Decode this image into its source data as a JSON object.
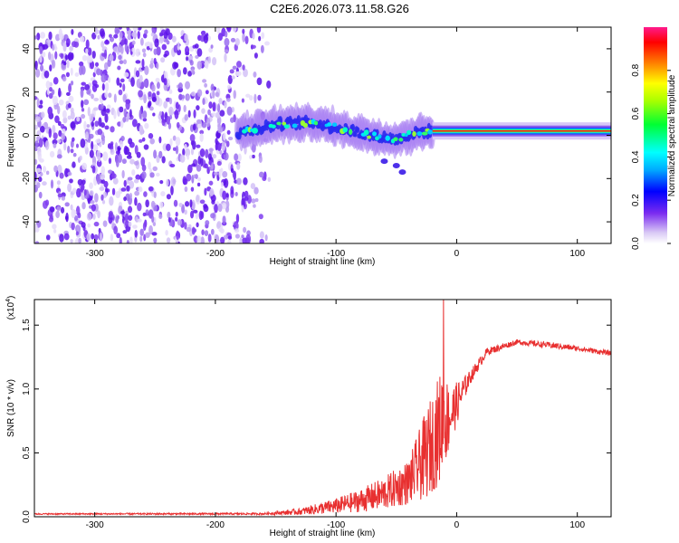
{
  "figure": {
    "title": "C2E6.2026.073.11.58.G26"
  },
  "chart_data": [
    {
      "type": "heatmap",
      "name": "spectrogram",
      "xlabel": "Height of straight line (km)",
      "ylabel": "Frequency (Hz)",
      "xlim": [
        -350,
        128
      ],
      "ylim": [
        -50,
        50
      ],
      "xticks": [
        -300,
        -200,
        -100,
        0,
        100
      ],
      "xtick_labels": [
        "-300",
        "-200",
        "-100",
        "0",
        "100"
      ],
      "yticks": [
        -40,
        -20,
        0,
        20,
        40
      ],
      "ytick_labels": [
        "-40",
        "-20",
        "0",
        "20",
        "40"
      ],
      "colorbar": {
        "label": "Normalized spectral amplitude",
        "range": [
          0,
          1
        ],
        "ticks": [
          0.0,
          0.2,
          0.4,
          0.6,
          0.8
        ],
        "tick_labels": [
          "0.0",
          "0.2",
          "0.4",
          "0.6",
          "0.8"
        ]
      },
      "regions": {
        "noise_end_km": -155,
        "signal_start_km": -182,
        "tone_start_km": -20,
        "tone_freq_hz": 2,
        "trace_points": [
          {
            "x": -182,
            "f": 1
          },
          {
            "x": -150,
            "f": 5
          },
          {
            "x": -120,
            "f": 6
          },
          {
            "x": -95,
            "f": 3
          },
          {
            "x": -70,
            "f": 0
          },
          {
            "x": -50,
            "f": -2
          },
          {
            "x": -35,
            "f": 1
          },
          {
            "x": -20,
            "f": 2
          },
          {
            "x": 128,
            "f": 2
          }
        ],
        "side_trace": [
          {
            "x": -60,
            "f": -12
          },
          {
            "x": -50,
            "f": -14
          },
          {
            "x": -45,
            "f": -17
          }
        ]
      }
    },
    {
      "type": "line",
      "name": "snr",
      "xlabel": "Height of straight line (km)",
      "ylabel": "SNR (10 * v/v)",
      "exponent_label": "(x10",
      "exponent": "4",
      "exponent_close": ")",
      "color": "#e83030",
      "xlim": [
        -350,
        128
      ],
      "ylim": [
        0,
        1.7
      ],
      "xticks": [
        -300,
        -200,
        -100,
        0,
        100
      ],
      "xtick_labels": [
        "-300",
        "-200",
        "-100",
        "0",
        "100"
      ],
      "yticks": [
        0.0,
        0.5,
        1.0,
        1.5
      ],
      "ytick_labels": [
        "0.0",
        "0.5",
        "1.0",
        "1.5"
      ],
      "envelope": [
        {
          "x": -350,
          "base": 0.02,
          "amp": 0.01
        },
        {
          "x": -160,
          "base": 0.02,
          "amp": 0.015
        },
        {
          "x": -130,
          "base": 0.03,
          "amp": 0.05
        },
        {
          "x": -100,
          "base": 0.06,
          "amp": 0.12
        },
        {
          "x": -80,
          "base": 0.09,
          "amp": 0.18
        },
        {
          "x": -60,
          "base": 0.13,
          "amp": 0.26
        },
        {
          "x": -40,
          "base": 0.2,
          "amp": 0.35
        },
        {
          "x": -25,
          "base": 0.35,
          "amp": 0.7
        },
        {
          "x": -12,
          "base": 0.55,
          "amp": 0.9
        },
        {
          "x": -5,
          "base": 0.7,
          "amp": 0.45
        },
        {
          "x": 10,
          "base": 1.05,
          "amp": 0.12
        },
        {
          "x": 25,
          "base": 1.28,
          "amp": 0.06
        },
        {
          "x": 50,
          "base": 1.36,
          "amp": 0.04
        },
        {
          "x": 80,
          "base": 1.33,
          "amp": 0.05
        },
        {
          "x": 100,
          "base": 1.31,
          "amp": 0.04
        },
        {
          "x": 128,
          "base": 1.27,
          "amp": 0.04
        }
      ],
      "peak": {
        "x": -11,
        "y": 1.72
      }
    }
  ]
}
